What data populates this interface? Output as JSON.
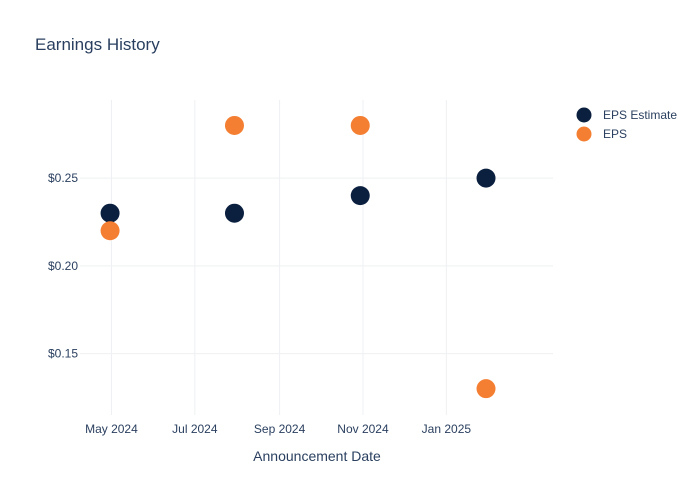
{
  "chart_data": {
    "type": "scatter",
    "title": "Earnings History",
    "xlabel": "Announcement Date",
    "ylabel": "",
    "x_ticks": [
      {
        "date": "2024-05-01",
        "label": "May 2024"
      },
      {
        "date": "2024-07-01",
        "label": "Jul 2024"
      },
      {
        "date": "2024-09-01",
        "label": "Sep 2024"
      },
      {
        "date": "2024-11-01",
        "label": "Nov 2024"
      },
      {
        "date": "2025-01-01",
        "label": "Jan 2025"
      }
    ],
    "y_ticks": [
      {
        "value": 0.15,
        "label": "$0.15"
      },
      {
        "value": 0.2,
        "label": "$0.20"
      },
      {
        "value": 0.25,
        "label": "$0.25"
      }
    ],
    "xlim": [
      "2024-04-08",
      "2025-03-20"
    ],
    "ylim": [
      0.115,
      0.2945
    ],
    "grid": true,
    "legend_position": "top-right",
    "series": [
      {
        "name": "EPS Estimate",
        "color": "#0b1f3f",
        "points": [
          {
            "x": "2024-04-30",
            "y": 0.23
          },
          {
            "x": "2024-07-30",
            "y": 0.23
          },
          {
            "x": "2024-10-30",
            "y": 0.24
          },
          {
            "x": "2025-01-30",
            "y": 0.25
          }
        ]
      },
      {
        "name": "EPS",
        "color": "#f47f33",
        "points": [
          {
            "x": "2024-04-30",
            "y": 0.22
          },
          {
            "x": "2024-07-30",
            "y": 0.28
          },
          {
            "x": "2024-10-30",
            "y": 0.28
          },
          {
            "x": "2025-01-30",
            "y": 0.13
          }
        ]
      }
    ]
  }
}
